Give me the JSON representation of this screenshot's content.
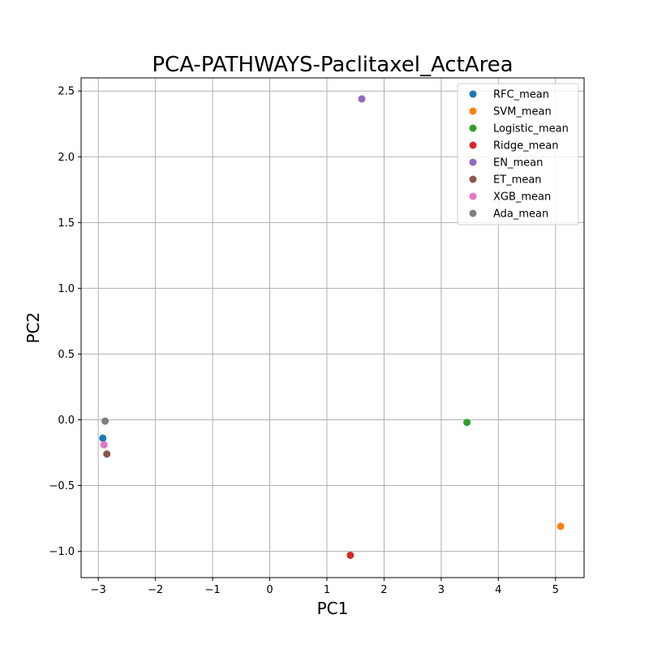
{
  "chart_data": {
    "type": "scatter",
    "title": "PCA-PATHWAYS-Paclitaxel_ActArea",
    "xlabel": "PC1",
    "ylabel": "PC2",
    "xlim": [
      -3.3,
      5.5
    ],
    "ylim": [
      -1.2,
      2.6
    ],
    "xticks": [
      -3,
      -2,
      -1,
      0,
      1,
      2,
      3,
      4,
      5
    ],
    "xtick_labels": [
      "−3",
      "−2",
      "−1",
      "0",
      "1",
      "2",
      "3",
      "4",
      "5"
    ],
    "yticks": [
      -1.0,
      -0.5,
      0.0,
      0.5,
      1.0,
      1.5,
      2.0,
      2.5
    ],
    "ytick_labels": [
      "−1.0",
      "−0.5",
      "0.0",
      "0.5",
      "1.0",
      "1.5",
      "2.0",
      "2.5"
    ],
    "grid": true,
    "legend_position": "top-right",
    "series": [
      {
        "name": "RFC_mean",
        "color": "#1f77b4",
        "x": [
          -2.92
        ],
        "y": [
          -0.14
        ]
      },
      {
        "name": "SVM_mean",
        "color": "#ff7f0e",
        "x": [
          5.09
        ],
        "y": [
          -0.81
        ]
      },
      {
        "name": "Logistic_mean",
        "color": "#2ca02c",
        "x": [
          3.45
        ],
        "y": [
          -0.02
        ]
      },
      {
        "name": "Ridge_mean",
        "color": "#d62728",
        "x": [
          1.41
        ],
        "y": [
          -1.03
        ]
      },
      {
        "name": "EN_mean",
        "color": "#9467bd",
        "x": [
          1.61
        ],
        "y": [
          2.44
        ]
      },
      {
        "name": "ET_mean",
        "color": "#8c564b",
        "x": [
          -2.85
        ],
        "y": [
          -0.26
        ]
      },
      {
        "name": "XGB_mean",
        "color": "#e377c2",
        "x": [
          -2.9
        ],
        "y": [
          -0.19
        ]
      },
      {
        "name": "Ada_mean",
        "color": "#7f7f7f",
        "x": [
          -2.88
        ],
        "y": [
          -0.01
        ]
      }
    ]
  }
}
